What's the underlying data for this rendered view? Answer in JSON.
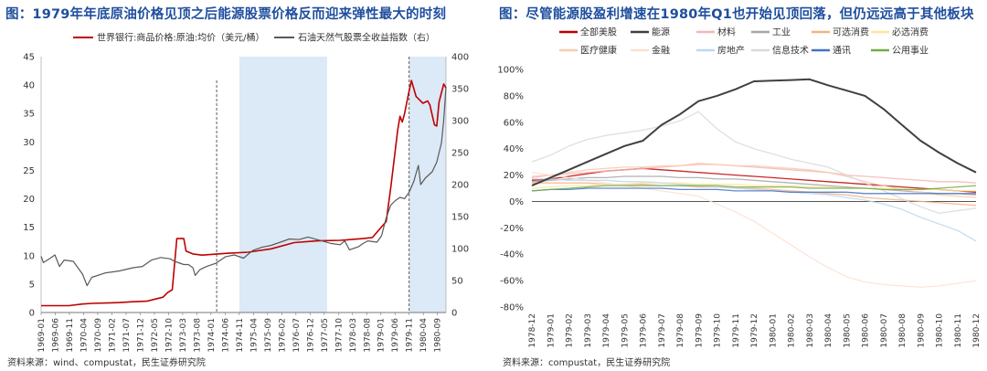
{
  "chart_data": [
    {
      "type": "line",
      "title": "图：1979年年底原油价格见顶之后能源股票价格反而迎来弹性最大的时刻",
      "source": "资料来源：wind、compustat，民生证券研究院",
      "categories": [
        "1969-01",
        "1969-06",
        "1969-11",
        "1970-04",
        "1970-09",
        "1971-02",
        "1971-07",
        "1971-12",
        "1972-05",
        "1972-10",
        "1973-03",
        "1973-08",
        "1974-01",
        "1974-06",
        "1974-11",
        "1975-04",
        "1975-09",
        "1976-02",
        "1976-07",
        "1976-12",
        "1977-05",
        "1977-10",
        "1978-03",
        "1978-08",
        "1979-01",
        "1979-06",
        "1979-11",
        "1980-04",
        "1980-09"
      ],
      "y_left": {
        "range": [
          0,
          45
        ],
        "ticks": [
          "0",
          "5",
          "10",
          "15",
          "20",
          "25",
          "30",
          "35",
          "40",
          "45"
        ]
      },
      "y_right": {
        "range": [
          0,
          400
        ],
        "ticks": [
          "0",
          "50",
          "100",
          "150",
          "200",
          "250",
          "300",
          "350",
          "400"
        ]
      },
      "shaded_ranges": [
        [
          "1974-11",
          "1977-06"
        ],
        [
          "1979-11",
          "1980-12"
        ]
      ],
      "dashed_lines": [
        "1974-03",
        "1979-11"
      ],
      "series": [
        {
          "name": "世界银行:商品价格:原油:均价（美元/桶）",
          "axis": "left",
          "color": "#c00000",
          "points": [
            [
              0,
              1.2
            ],
            [
              6,
              1.2
            ],
            [
              10,
              1.2
            ],
            [
              12,
              1.2
            ],
            [
              18,
              1.5
            ],
            [
              22,
              1.6
            ],
            [
              30,
              1.7
            ],
            [
              34,
              1.75
            ],
            [
              40,
              1.9
            ],
            [
              46,
              2.0
            ],
            [
              49,
              2.3
            ],
            [
              53,
              2.7
            ],
            [
              55,
              3.5
            ],
            [
              57,
              4.0
            ],
            [
              59,
              13.0
            ],
            [
              62,
              13.0
            ],
            [
              63,
              10.8
            ],
            [
              66,
              10.3
            ],
            [
              70,
              10.1
            ],
            [
              80,
              10.4
            ],
            [
              90,
              10.6
            ],
            [
              100,
              11.2
            ],
            [
              110,
              12.3
            ],
            [
              120,
              12.6
            ],
            [
              130,
              12.7
            ],
            [
              140,
              13.0
            ],
            [
              144,
              13.2
            ],
            [
              150,
              16.0
            ],
            [
              152,
              22.0
            ],
            [
              155,
              32.0
            ],
            [
              156,
              34.5
            ],
            [
              157,
              33.5
            ],
            [
              158,
              35.0
            ],
            [
              160,
              39.0
            ],
            [
              161,
              40.8
            ],
            [
              163,
              38.0
            ],
            [
              166,
              36.8
            ],
            [
              168,
              37.2
            ],
            [
              169,
              36.5
            ],
            [
              171,
              33.0
            ],
            [
              172,
              32.8
            ],
            [
              173,
              37.0
            ],
            [
              175,
              40.2
            ],
            [
              176,
              39.5
            ]
          ]
        },
        {
          "name": "石油天然气股票全收益指数（右）",
          "axis": "right",
          "color": "#595959",
          "points": [
            [
              0,
              88
            ],
            [
              1,
              78
            ],
            [
              4,
              85
            ],
            [
              6,
              90
            ],
            [
              8,
              72
            ],
            [
              10,
              82
            ],
            [
              14,
              80
            ],
            [
              18,
              60
            ],
            [
              20,
              42
            ],
            [
              22,
              55
            ],
            [
              28,
              62
            ],
            [
              34,
              65
            ],
            [
              40,
              70
            ],
            [
              44,
              72
            ],
            [
              48,
              82
            ],
            [
              52,
              86
            ],
            [
              56,
              84
            ],
            [
              58,
              80
            ],
            [
              62,
              75
            ],
            [
              64,
              75
            ],
            [
              66,
              70
            ],
            [
              67,
              58
            ],
            [
              69,
              67
            ],
            [
              72,
              72
            ],
            [
              76,
              77
            ],
            [
              80,
              87
            ],
            [
              84,
              90
            ],
            [
              88,
              85
            ],
            [
              92,
              97
            ],
            [
              96,
              102
            ],
            [
              100,
              105
            ],
            [
              104,
              110
            ],
            [
              108,
              115
            ],
            [
              112,
              114
            ],
            [
              116,
              118
            ],
            [
              120,
              114
            ],
            [
              122,
              112
            ],
            [
              126,
              108
            ],
            [
              130,
              106
            ],
            [
              132,
              112
            ],
            [
              134,
              98
            ],
            [
              138,
              103
            ],
            [
              140,
              108
            ],
            [
              142,
              112
            ],
            [
              146,
              110
            ],
            [
              148,
              120
            ],
            [
              150,
              148
            ],
            [
              152,
              168
            ],
            [
              154,
              175
            ],
            [
              156,
              180
            ],
            [
              158,
              178
            ],
            [
              160,
              188
            ],
            [
              162,
              205
            ],
            [
              164,
              230
            ],
            [
              165,
              200
            ],
            [
              167,
              210
            ],
            [
              170,
              220
            ],
            [
              172,
              235
            ],
            [
              174,
              265
            ],
            [
              175,
              300
            ],
            [
              176,
              352
            ]
          ]
        }
      ]
    },
    {
      "type": "line",
      "title": "图：尽管能源股盈利增速在1980年Q1也开始见顶回落，但仍远远高于其他板块",
      "source": "资料来源：compustat，民生证券研究院",
      "categories": [
        "1978-12",
        "1979-01",
        "1979-02",
        "1979-03",
        "1979-04",
        "1979-05",
        "1979-06",
        "1979-07",
        "1979-08",
        "1979-09",
        "1979-10",
        "1979-11",
        "1979-12",
        "1980-01",
        "1980-02",
        "1980-03",
        "1980-04",
        "1980-05",
        "1980-06",
        "1980-07",
        "1980-08",
        "1980-09",
        "1980-10",
        "1980-11",
        "1980-12"
      ],
      "y": {
        "range": [
          -80,
          100
        ],
        "ticks": [
          "-80%",
          "-60%",
          "-40%",
          "-20%",
          "0%",
          "20%",
          "40%",
          "60%",
          "80%",
          "100%"
        ]
      },
      "series": [
        {
          "name": "全部美股",
          "color": "#c00000",
          "values": [
            16,
            17,
            19,
            21,
            23,
            24,
            25,
            24,
            23,
            22,
            21,
            20,
            19,
            18,
            17,
            16,
            15,
            14,
            13,
            12,
            11,
            10,
            9,
            8,
            7
          ]
        },
        {
          "name": "能源",
          "color": "#404040",
          "values": [
            12,
            18,
            24,
            30,
            36,
            42,
            46,
            58,
            66,
            76,
            80,
            85,
            91,
            91.5,
            92,
            92.5,
            88,
            84,
            80,
            70,
            58,
            46,
            37,
            29,
            22
          ]
        },
        {
          "name": "材料",
          "color": "#f4b6b6",
          "values": [
            18,
            20,
            21,
            22,
            23,
            24,
            25,
            26,
            27,
            28,
            28,
            27,
            26,
            25,
            24,
            23,
            22,
            20,
            19,
            18,
            17,
            16,
            15,
            15,
            14
          ]
        },
        {
          "name": "工业",
          "color": "#a6a6a6",
          "values": [
            15,
            16,
            17,
            18,
            18,
            19,
            19,
            19,
            18,
            18,
            17,
            17,
            16,
            15,
            14,
            13,
            12,
            11,
            10,
            9,
            8,
            7,
            6,
            6,
            5
          ]
        },
        {
          "name": "可选消费",
          "color": "#f4b183",
          "values": [
            14,
            14,
            14,
            14,
            13,
            13,
            13,
            12,
            12,
            11,
            11,
            10,
            10,
            9,
            8,
            7,
            6,
            5,
            3,
            2,
            1,
            0,
            -1,
            -2,
            -3
          ]
        },
        {
          "name": "必选消费",
          "color": "#ffe699",
          "values": [
            10,
            11,
            12,
            12,
            13,
            13,
            14,
            14,
            14,
            13,
            13,
            13,
            12,
            12,
            12,
            11,
            11,
            10,
            10,
            10,
            9,
            9,
            9,
            8,
            8
          ]
        },
        {
          "name": "医疗健康",
          "color": "#f8cbad",
          "values": [
            19,
            20,
            22,
            24,
            25,
            26,
            26,
            27,
            27,
            29,
            28,
            27,
            27,
            26,
            25,
            24,
            22,
            19,
            15,
            12,
            9,
            7,
            5,
            4,
            3
          ]
        },
        {
          "name": "金融",
          "color": "#fbe0d3",
          "values": [
            22,
            20,
            18,
            16,
            14,
            12,
            10,
            8,
            6,
            4,
            -2,
            -8,
            -15,
            -24,
            -33,
            -42,
            -50,
            -57,
            -61,
            -63,
            -64,
            -65,
            -64,
            -62,
            -60
          ]
        },
        {
          "name": "房地产",
          "color": "#bdd7ee",
          "values": [
            17,
            17,
            16,
            16,
            16,
            15,
            15,
            14,
            13,
            12,
            11,
            10,
            9,
            8,
            7,
            6,
            5,
            3,
            1,
            -2,
            -6,
            -12,
            -17,
            -22,
            -30
          ]
        },
        {
          "name": "信息技术",
          "color": "#d9d9d9",
          "values": [
            30,
            35,
            42,
            47,
            50,
            52,
            54,
            57,
            61,
            68,
            55,
            45,
            40,
            36,
            32,
            29,
            26,
            20,
            14,
            8,
            2,
            -4,
            -9,
            -7,
            -5
          ]
        },
        {
          "name": "通讯",
          "color": "#4472c4",
          "values": [
            8,
            9,
            9,
            10,
            10,
            10,
            10,
            10,
            9,
            9,
            9,
            8,
            8,
            8,
            7,
            7,
            7,
            7,
            6,
            6,
            6,
            6,
            6,
            6,
            6
          ]
        },
        {
          "name": "公用事业",
          "color": "#70ad47",
          "values": [
            8,
            9,
            10,
            11,
            12,
            12,
            12,
            12,
            12,
            12,
            12,
            11,
            11,
            11,
            11,
            10,
            10,
            10,
            10,
            9,
            9,
            9,
            10,
            11,
            12
          ]
        }
      ]
    }
  ]
}
